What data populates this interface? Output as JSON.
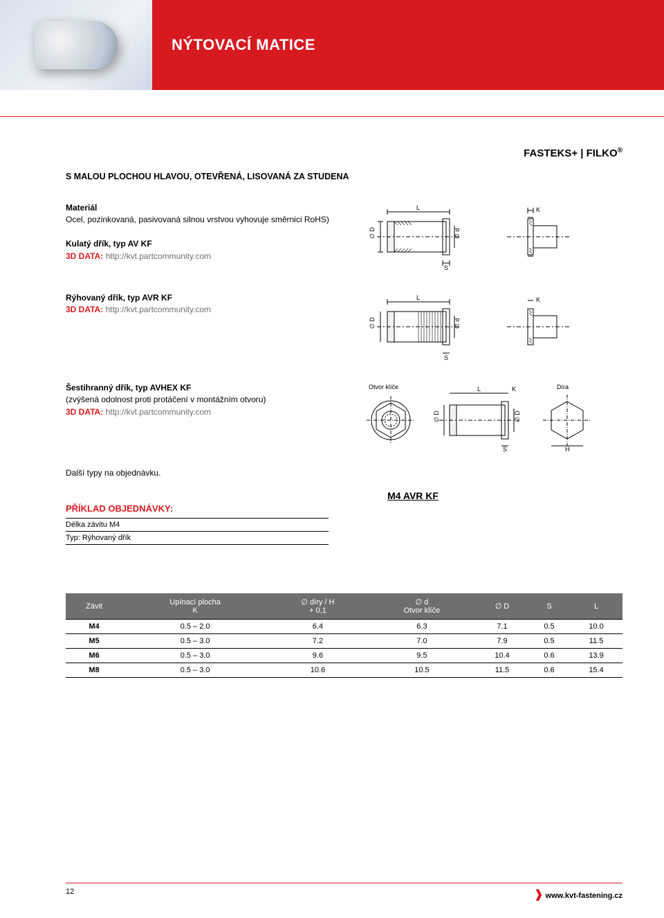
{
  "header": {
    "title": "NÝTOVACÍ MATICE",
    "brand_prefix": "FASTEKS+ | FILKO",
    "brand_reg": "®"
  },
  "subhead": "S MALOU PLOCHOU HLAVOU, OTEVŘENÁ, LISOVANÁ ZA STUDENA",
  "sections": {
    "material": {
      "label": "Materiál",
      "text": "Ocel, pozinkovaná, pasivovaná silnou vrstvou vyhovuje směrnici RoHS)"
    },
    "type1": {
      "label": "Kulatý dřík, typ AV KF",
      "link_label": "3D DATA:",
      "link_url": "http://kvt.partcommunity.com"
    },
    "type2": {
      "label": "Rýhovaný dřík, typ AVR KF",
      "link_label": "3D DATA:",
      "link_url": "http://kvt.partcommunity.com"
    },
    "type3": {
      "label": "Šestihranný dřík, typ AVHEX KF",
      "note": "(zvýšená odolnost proti protáčení v montážním otvoru)",
      "link_label": "3D DATA:",
      "link_url": "http://kvt.partcommunity.com",
      "otvor_label": "Otvor klíče",
      "dira_label": "Díra"
    },
    "extra_note": "Další typy na objednávku."
  },
  "order": {
    "title": "PŘÍKLAD OBJEDNÁVKY:",
    "code": "M4 AVR KF",
    "rows": [
      "Délka závitu M4",
      "Typ: Rýhovaný dřík"
    ]
  },
  "table": {
    "columns": [
      "Závit",
      "Upínací plocha\nK",
      "∅ díry / H\n+ 0,1",
      "∅ d\nOtvor klíče",
      "∅ D",
      "S",
      "L"
    ],
    "col_sub": [
      "",
      "K",
      "+ 0,1",
      "Otvor klíče",
      "",
      "",
      ""
    ],
    "col_top": [
      "Závit",
      "Upínací plocha",
      "∅ díry / H",
      "∅ d",
      "∅ D",
      "S",
      "L"
    ],
    "rows": [
      [
        "M4",
        "0.5 – 2.0",
        "6.4",
        "6.3",
        "7.1",
        "0.5",
        "10.0"
      ],
      [
        "M5",
        "0.5 – 3.0",
        "7.2",
        "7.0",
        "7.9",
        "0.5",
        "11.5"
      ],
      [
        "M6",
        "0.5 – 3.0",
        "9.6",
        "9.5",
        "10.4",
        "0.6",
        "13.9"
      ],
      [
        "M8",
        "0.5 – 3.0",
        "10.6",
        "10.5",
        "11.5",
        "0.6",
        "15.4"
      ]
    ],
    "header_bg": "#6f6f6f",
    "header_fg": "#ffffff"
  },
  "diagram_labels": {
    "L": "L",
    "K": "K",
    "S": "S",
    "D": "∅ D",
    "d": "∅ d",
    "H": "H"
  },
  "footer": {
    "page": "12",
    "url": "www.kvt-fastening.cz",
    "prefix": "❱"
  },
  "colors": {
    "accent": "#d71920",
    "grey": "#6f6f6f"
  }
}
